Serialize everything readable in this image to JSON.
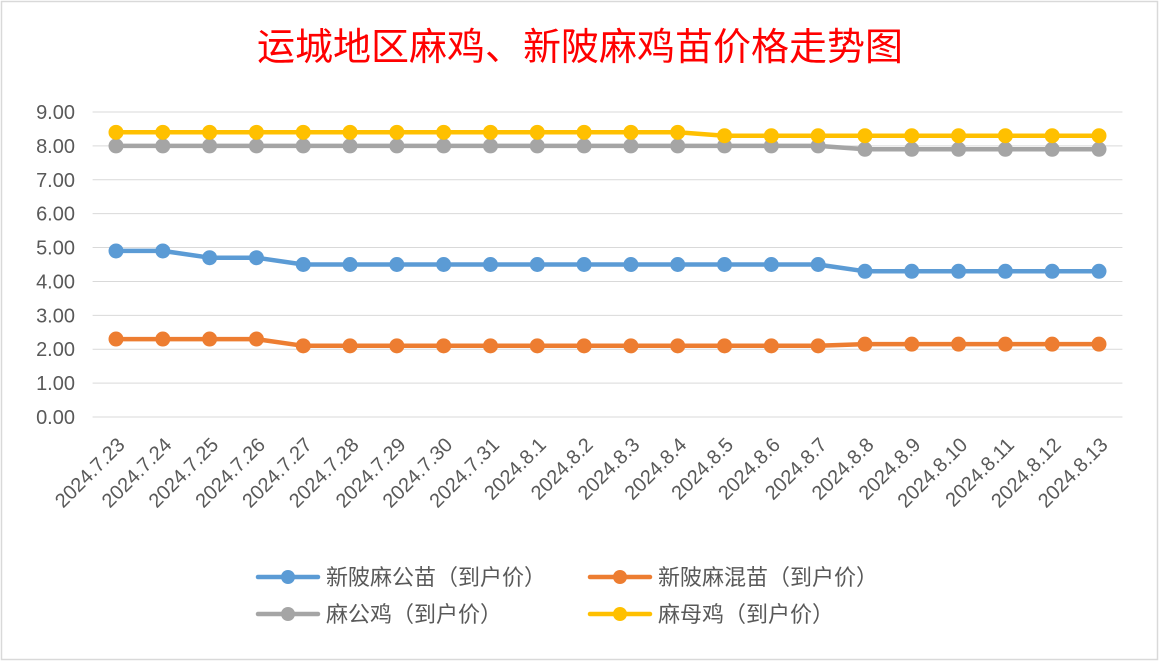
{
  "chart_data": {
    "type": "line",
    "title": "运城地区麻鸡、新陂麻鸡苗价格走势图",
    "categories": [
      "2024.7.23",
      "2024.7.24",
      "2024.7.25",
      "2024.7.26",
      "2024.7.27",
      "2024.7.28",
      "2024.7.29",
      "2024.7.30",
      "2024.7.31",
      "2024.8.1",
      "2024.8.2",
      "2024.8.3",
      "2024.8.4",
      "2024.8.5",
      "2024.8.6",
      "2024.8.7",
      "2024.8.8",
      "2024.8.9",
      "2024.8.10",
      "2024.8.11",
      "2024.8.12",
      "2024.8.13"
    ],
    "series": [
      {
        "name": "新陂麻公苗（到户价）",
        "color": "#5B9BD5",
        "values": [
          4.9,
          4.9,
          4.7,
          4.7,
          4.5,
          4.5,
          4.5,
          4.5,
          4.5,
          4.5,
          4.5,
          4.5,
          4.5,
          4.5,
          4.5,
          4.5,
          4.3,
          4.3,
          4.3,
          4.3,
          4.3,
          4.3
        ]
      },
      {
        "name": "新陂麻混苗（到户价）",
        "color": "#ED7D31",
        "values": [
          2.3,
          2.3,
          2.3,
          2.3,
          2.1,
          2.1,
          2.1,
          2.1,
          2.1,
          2.1,
          2.1,
          2.1,
          2.1,
          2.1,
          2.1,
          2.1,
          2.15,
          2.15,
          2.15,
          2.15,
          2.15,
          2.15
        ]
      },
      {
        "name": "麻公鸡（到户价）",
        "color": "#A5A5A5",
        "values": [
          8.0,
          8.0,
          8.0,
          8.0,
          8.0,
          8.0,
          8.0,
          8.0,
          8.0,
          8.0,
          8.0,
          8.0,
          8.0,
          8.0,
          8.0,
          8.0,
          7.9,
          7.9,
          7.9,
          7.9,
          7.9,
          7.9
        ]
      },
      {
        "name": "麻母鸡（到户价）",
        "color": "#FFC000",
        "values": [
          8.4,
          8.4,
          8.4,
          8.4,
          8.4,
          8.4,
          8.4,
          8.4,
          8.4,
          8.4,
          8.4,
          8.4,
          8.4,
          8.3,
          8.3,
          8.3,
          8.3,
          8.3,
          8.3,
          8.3,
          8.3,
          8.3
        ]
      }
    ],
    "ylim": [
      0,
      9
    ],
    "ytick_labels": [
      "0.00",
      "1.00",
      "2.00",
      "3.00",
      "4.00",
      "5.00",
      "6.00",
      "7.00",
      "8.00",
      "9.00"
    ],
    "grid": true,
    "legend": "bottom"
  },
  "colors": {
    "title": "#FF0000",
    "gridline": "#D9D9D9",
    "border": "#D9D9D9",
    "axis_text": "#595959"
  }
}
